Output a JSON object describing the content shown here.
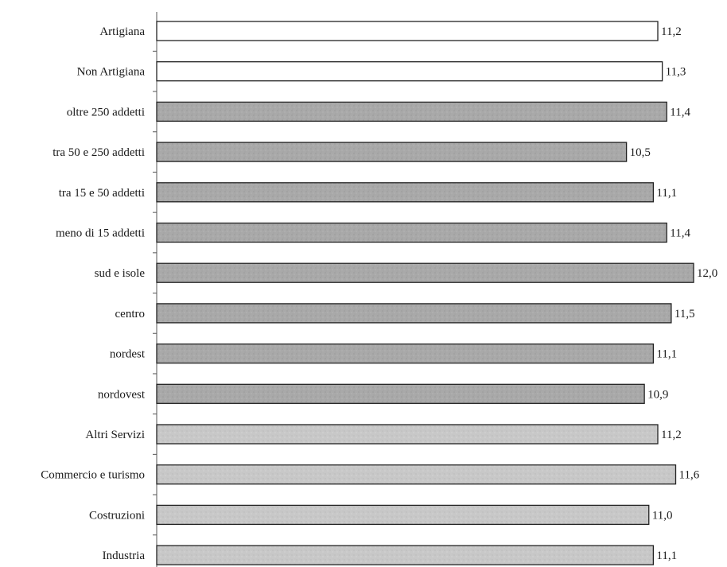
{
  "colors": {
    "white_fill": "#ffffff",
    "dark_fill": "#a9a9a9",
    "light_fill": "#c8c8c8",
    "bar_stroke": "#222222"
  },
  "chart_data": {
    "type": "bar",
    "orientation": "horizontal",
    "title": "",
    "xlabel": "",
    "ylabel": "",
    "xlim": [
      0,
      12.0
    ],
    "grid": false,
    "categories": [
      "Artigiana",
      "Non Artigiana",
      "oltre 250 addetti",
      "tra 50 e 250 addetti",
      "tra 15 e 50 addetti",
      "meno di 15 addetti",
      "sud e isole",
      "centro",
      "nordest",
      "nordovest",
      "Altri Servizi",
      "Commercio e turismo",
      "Costruzioni",
      "Industria"
    ],
    "values": [
      11.2,
      11.3,
      11.4,
      10.5,
      11.1,
      11.4,
      12.0,
      11.5,
      11.1,
      10.9,
      11.2,
      11.6,
      11.0,
      11.1
    ],
    "value_labels": [
      "11,2",
      "11,3",
      "11,4",
      "10,5",
      "11,1",
      "11,4",
      "12,0",
      "11,5",
      "11,1",
      "10,9",
      "11,2",
      "11,6",
      "11,0",
      "11,1"
    ],
    "fill_groups": [
      "white",
      "white",
      "dark",
      "dark",
      "dark",
      "dark",
      "dark",
      "dark",
      "dark",
      "dark",
      "light",
      "light",
      "light",
      "light"
    ]
  }
}
